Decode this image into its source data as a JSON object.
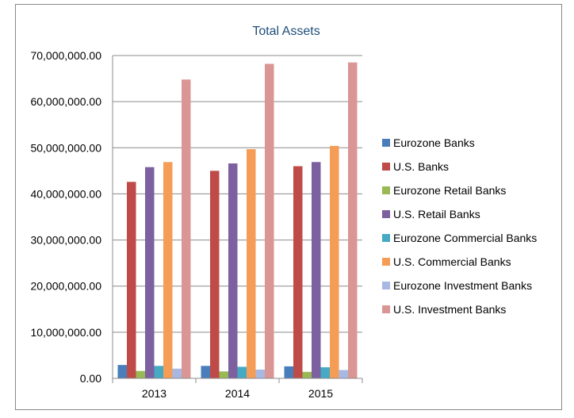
{
  "chart_data": {
    "type": "bar",
    "title": "Total Assets",
    "xlabel": "",
    "ylabel": "",
    "categories": [
      "2013",
      "2014",
      "2015"
    ],
    "ylim": [
      0,
      70000000
    ],
    "yticks": [
      0,
      10000000,
      20000000,
      30000000,
      40000000,
      50000000,
      60000000,
      70000000
    ],
    "ytick_labels": [
      "0.00",
      "10,000,000.00",
      "20,000,000.00",
      "30,000,000.00",
      "40,000,000.00",
      "50,000,000.00",
      "60,000,000.00",
      "70,000,000.00"
    ],
    "grid": true,
    "legend_position": "right",
    "series": [
      {
        "name": "Eurozone Banks",
        "color": "#4a7ebb",
        "values": [
          2900000,
          2700000,
          2600000
        ]
      },
      {
        "name": "U.S. Banks",
        "color": "#be4b48",
        "values": [
          42600000,
          45000000,
          46000000
        ]
      },
      {
        "name": "Eurozone Retail Banks",
        "color": "#98b954",
        "values": [
          1600000,
          1500000,
          1400000
        ]
      },
      {
        "name": "U.S. Retail Banks",
        "color": "#7d60a0",
        "values": [
          45800000,
          46600000,
          46900000
        ]
      },
      {
        "name": "Eurozone Commercial Banks",
        "color": "#46aac4",
        "values": [
          2700000,
          2500000,
          2400000
        ]
      },
      {
        "name": "U.S. Commercial Banks",
        "color": "#f59d56",
        "values": [
          46900000,
          49700000,
          50400000
        ]
      },
      {
        "name": "Eurozone Investment Banks",
        "color": "#a7b9e3",
        "values": [
          2100000,
          1900000,
          1800000
        ]
      },
      {
        "name": "U.S. Investment Banks",
        "color": "#d99694",
        "values": [
          64800000,
          68200000,
          68500000
        ]
      }
    ]
  }
}
